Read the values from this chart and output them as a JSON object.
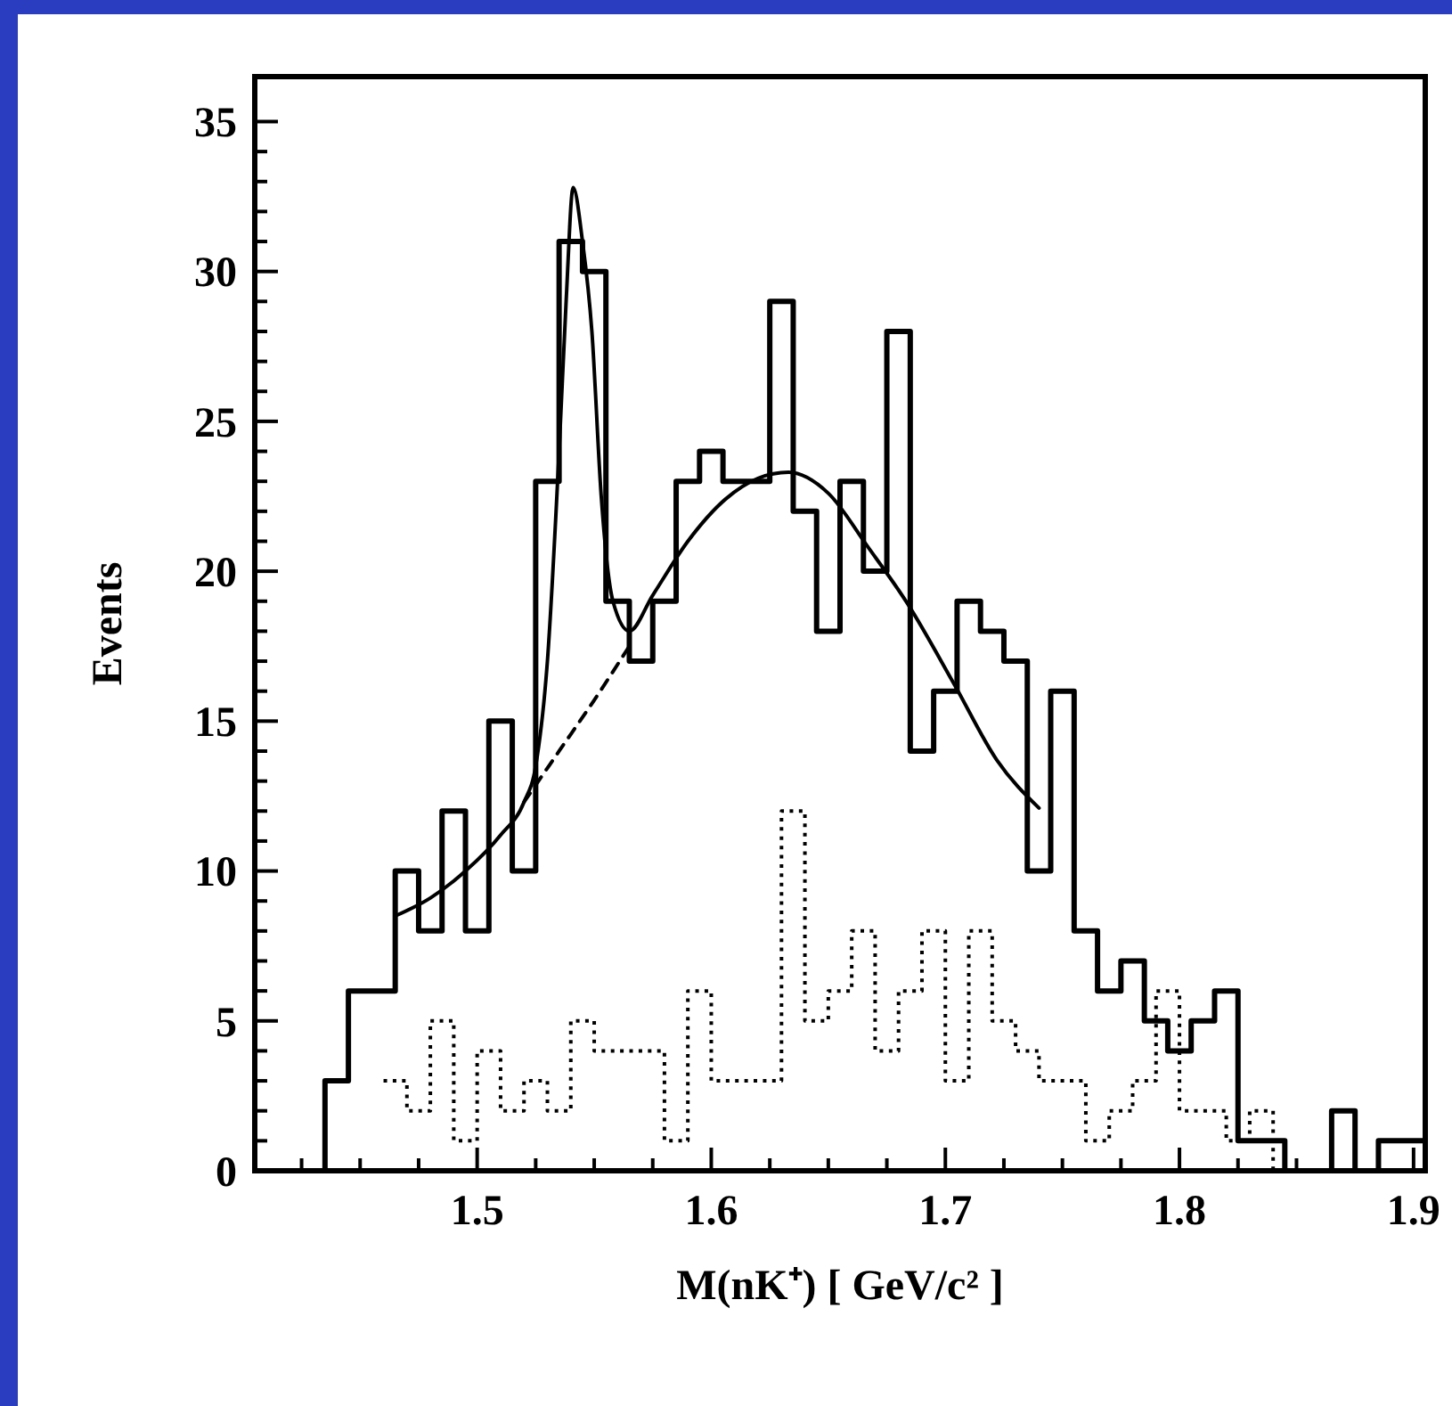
{
  "chart_data": {
    "type": "histogram",
    "xlabel": "M(nK⁺) [ GeV/c² ]",
    "ylabel": "Events",
    "xlim": [
      1.405,
      1.905
    ],
    "ylim": [
      0,
      36.5
    ],
    "xticks": [
      {
        "value": 1.425,
        "label": null
      },
      {
        "value": 1.45,
        "label": null
      },
      {
        "value": 1.475,
        "label": null
      },
      1.5,
      {
        "value": 1.525,
        "label": null
      },
      {
        "value": 1.55,
        "label": null
      },
      {
        "value": 1.575,
        "label": null
      },
      1.6,
      {
        "value": 1.625,
        "label": null
      },
      {
        "value": 1.65,
        "label": null
      },
      {
        "value": 1.675,
        "label": null
      },
      1.7,
      {
        "value": 1.725,
        "label": null
      },
      {
        "value": 1.75,
        "label": null
      },
      {
        "value": 1.775,
        "label": null
      },
      1.8,
      {
        "value": 1.825,
        "label": null
      },
      {
        "value": 1.85,
        "label": null
      },
      {
        "value": 1.875,
        "label": null
      },
      1.9
    ],
    "yticks": [
      0,
      {
        "value": 1,
        "label": null
      },
      {
        "value": 2,
        "label": null
      },
      {
        "value": 3,
        "label": null
      },
      {
        "value": 4,
        "label": null
      },
      5,
      {
        "value": 6,
        "label": null
      },
      {
        "value": 7,
        "label": null
      },
      {
        "value": 8,
        "label": null
      },
      {
        "value": 9,
        "label": null
      },
      10,
      {
        "value": 11,
        "label": null
      },
      {
        "value": 12,
        "label": null
      },
      {
        "value": 13,
        "label": null
      },
      {
        "value": 14,
        "label": null
      },
      15,
      {
        "value": 16,
        "label": null
      },
      {
        "value": 17,
        "label": null
      },
      {
        "value": 18,
        "label": null
      },
      {
        "value": 19,
        "label": null
      },
      20,
      {
        "value": 21,
        "label": null
      },
      {
        "value": 22,
        "label": null
      },
      {
        "value": 23,
        "label": null
      },
      {
        "value": 24,
        "label": null
      },
      25,
      {
        "value": 26,
        "label": null
      },
      {
        "value": 27,
        "label": null
      },
      {
        "value": 28,
        "label": null
      },
      {
        "value": 29,
        "label": null
      },
      30,
      {
        "value": 31,
        "label": null
      },
      {
        "value": 32,
        "label": null
      },
      {
        "value": 33,
        "label": null
      },
      {
        "value": 34,
        "label": null
      },
      35
    ],
    "color": "#000000",
    "bins": [
      1.435,
      1.445,
      1.455,
      1.465,
      1.475,
      1.485,
      1.495,
      1.505,
      1.515,
      1.525,
      1.535,
      1.545,
      1.555,
      1.565,
      1.575,
      1.585,
      1.595,
      1.605,
      1.615,
      1.625,
      1.635,
      1.645,
      1.655,
      1.665,
      1.675,
      1.685,
      1.695,
      1.705,
      1.715,
      1.725,
      1.735,
      1.745,
      1.755,
      1.765,
      1.775,
      1.785,
      1.795,
      1.805,
      1.815,
      1.825,
      1.835,
      1.845,
      1.855,
      1.865,
      1.875,
      1.885,
      1.895,
      1.905
    ],
    "values": [
      3,
      6,
      6,
      10,
      8,
      12,
      8,
      15,
      10,
      23,
      31,
      30,
      19,
      17,
      19,
      23,
      24,
      23,
      23,
      29,
      22,
      18,
      23,
      20,
      28,
      14,
      16,
      19,
      18,
      17,
      10,
      16,
      8,
      6,
      7,
      5,
      4,
      5,
      6,
      1,
      1,
      0,
      0,
      2,
      0,
      1,
      1
    ],
    "series": [
      {
        "type": "step",
        "color": "#000000",
        "line_style": "dotted",
        "x": [
          1.46,
          1.47,
          1.48,
          1.49,
          1.5,
          1.51,
          1.52,
          1.53,
          1.54,
          1.55,
          1.56,
          1.57,
          1.58,
          1.59,
          1.6,
          1.61,
          1.62,
          1.63,
          1.64,
          1.65,
          1.66,
          1.67,
          1.68,
          1.69,
          1.7,
          1.71,
          1.72,
          1.73,
          1.74,
          1.75,
          1.76,
          1.77,
          1.78,
          1.79,
          1.8,
          1.81,
          1.82,
          1.83,
          1.84
        ],
        "values": [
          3,
          2,
          5,
          1,
          4,
          2,
          3,
          2,
          5,
          4,
          4,
          4,
          1,
          6,
          3,
          3,
          3,
          12,
          5,
          6,
          8,
          4,
          6,
          8,
          3,
          8,
          5,
          4,
          3,
          3,
          1,
          2,
          3,
          6,
          2,
          2,
          1,
          2,
          0
        ]
      },
      {
        "type": "line",
        "color": "#000000",
        "line_style": "solid",
        "x": [
          1.465,
          1.48,
          1.495,
          1.51,
          1.52,
          1.525,
          1.53,
          1.535,
          1.538,
          1.541,
          1.545,
          1.549,
          1.553,
          1.558,
          1.565,
          1.575,
          1.59,
          1.606,
          1.62,
          1.633,
          1.65,
          1.667,
          1.684,
          1.704,
          1.722,
          1.74
        ],
        "values": [
          8.5,
          9.1,
          10.0,
          11.2,
          12.3,
          13.5,
          17,
          24,
          29,
          32.8,
          31,
          28,
          22.5,
          19,
          18.0,
          19.2,
          21.0,
          22.4,
          23.1,
          23.3,
          22.6,
          20.8,
          18.9,
          16.2,
          13.7,
          12.1
        ]
      },
      {
        "type": "line",
        "color": "#000000",
        "line_style": "dashed",
        "x": [
          1.52,
          1.535,
          1.55,
          1.565
        ],
        "values": [
          12.3,
          14,
          15.7,
          17.5
        ]
      }
    ]
  }
}
